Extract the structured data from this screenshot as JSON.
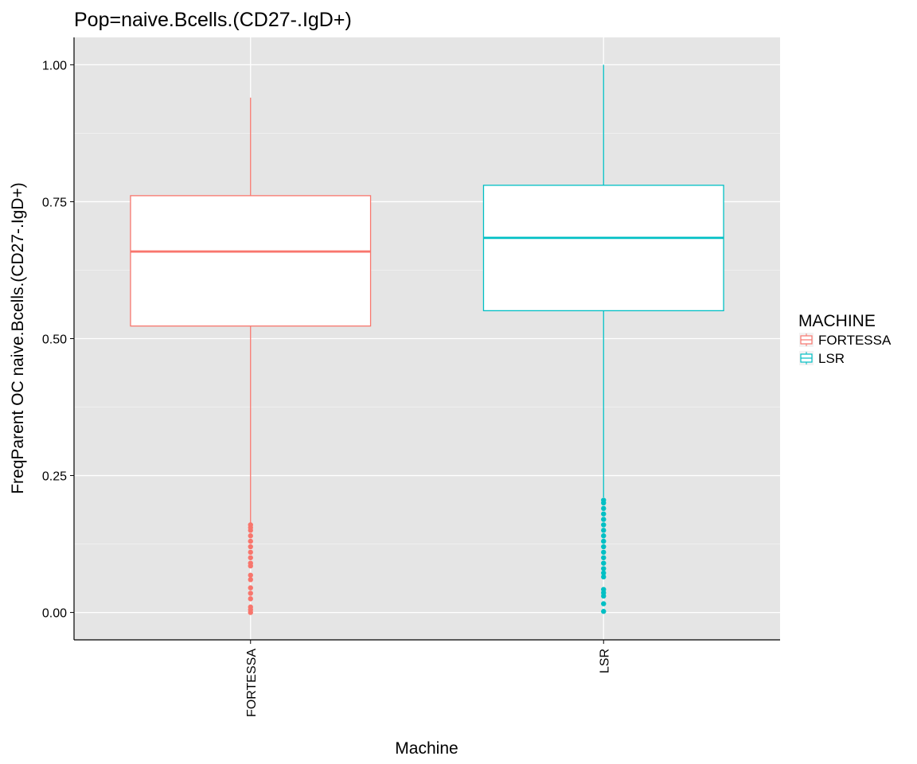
{
  "chart_data": {
    "type": "boxplot",
    "title": "Pop=naive.Bcells.(CD27-.IgD+)",
    "xlabel": "Machine",
    "ylabel": "FreqParent OC  naive.Bcells.(CD27-.IgD+)",
    "ylim": [
      -0.05,
      1.05
    ],
    "yticks": [
      "0.00",
      "0.25",
      "0.50",
      "0.75",
      "1.00"
    ],
    "yticks_values": [
      0,
      0.25,
      0.5,
      0.75,
      1.0
    ],
    "categories": [
      "FORTESSA",
      "LSR"
    ],
    "grid": true,
    "legend": {
      "title": "MACHINE",
      "position": "right"
    },
    "series": [
      {
        "name": "FORTESSA",
        "color": "#F8766D",
        "whisker_low": 0.162,
        "q1": 0.523,
        "median": 0.659,
        "q3": 0.761,
        "whisker_high": 0.94,
        "outliers": [
          0.0,
          0.005,
          0.01,
          0.025,
          0.035,
          0.045,
          0.06,
          0.068,
          0.085,
          0.09,
          0.1,
          0.11,
          0.12,
          0.13,
          0.14,
          0.15,
          0.155,
          0.16
        ]
      },
      {
        "name": "LSR",
        "color": "#00BFC4",
        "whisker_low": 0.21,
        "q1": 0.551,
        "median": 0.684,
        "q3": 0.78,
        "whisker_high": 1.0,
        "outliers": [
          0.002,
          0.016,
          0.03,
          0.036,
          0.042,
          0.065,
          0.072,
          0.08,
          0.09,
          0.1,
          0.11,
          0.12,
          0.13,
          0.14,
          0.15,
          0.16,
          0.17,
          0.18,
          0.19,
          0.2,
          0.205
        ]
      }
    ]
  }
}
